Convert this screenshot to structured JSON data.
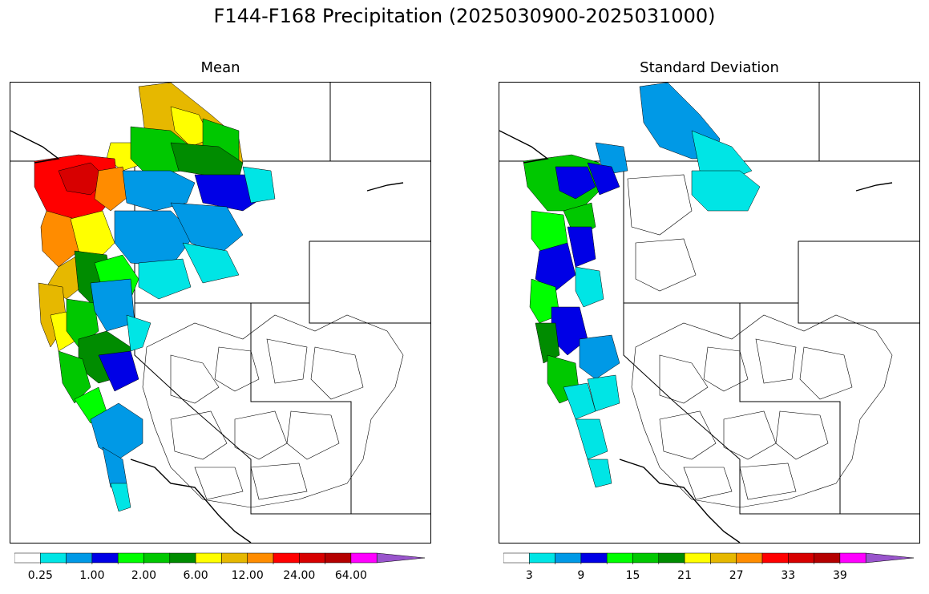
{
  "figure": {
    "title": "F144-F168 Precipitation (2025030900-2025031000)"
  },
  "panels": [
    {
      "title": "Mean",
      "colorbar": {
        "colors": [
          "#ffffff",
          "#00e5e5",
          "#0099e6",
          "#0000e6",
          "#00ff00",
          "#00c800",
          "#008c00",
          "#ffff00",
          "#e6b800",
          "#ff8c00",
          "#ff0000",
          "#d70000",
          "#b40000",
          "#ff00ff",
          "#9955cc"
        ],
        "tick_labels": [
          "0.25",
          "1.00",
          "2.00",
          "6.00",
          "12.00",
          "24.00",
          "64.00"
        ],
        "extend": "max"
      }
    },
    {
      "title": "Standard Deviation",
      "colorbar": {
        "colors": [
          "#ffffff",
          "#00e5e5",
          "#0099e6",
          "#0000e6",
          "#00ff00",
          "#00c800",
          "#008c00",
          "#ffff00",
          "#e6b800",
          "#ff8c00",
          "#ff0000",
          "#d70000",
          "#b40000",
          "#ff00ff",
          "#9955cc"
        ],
        "tick_labels": [
          "3",
          "9",
          "15",
          "21",
          "27",
          "33",
          "39"
        ],
        "extend": "max"
      }
    }
  ]
}
